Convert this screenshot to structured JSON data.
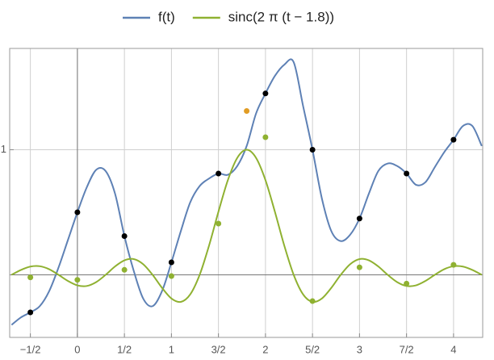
{
  "chart_data": {
    "type": "line",
    "x": [
      -0.7,
      -0.6,
      -0.5,
      -0.4,
      -0.3,
      -0.2,
      -0.1,
      0,
      0.1,
      0.2,
      0.3,
      0.4,
      0.5,
      0.6,
      0.7,
      0.8,
      0.9,
      1,
      1.1,
      1.2,
      1.3,
      1.4,
      1.5,
      1.6,
      1.7,
      1.8,
      1.9,
      2,
      2.1,
      2.2,
      2.3,
      2.4,
      2.5,
      2.6,
      2.7,
      2.8,
      2.9,
      3,
      3.1,
      3.2,
      3.3,
      3.4,
      3.5,
      3.6,
      3.7,
      3.8,
      3.9,
      4,
      4.1,
      4.2,
      4.3
    ],
    "series": [
      {
        "name": "f(t)",
        "color": "#5e81b5",
        "values": [
          -0.4,
          -0.34,
          -0.3,
          -0.25,
          -0.13,
          0.06,
          0.28,
          0.5,
          0.7,
          0.84,
          0.83,
          0.65,
          0.31,
          0.03,
          -0.19,
          -0.25,
          -0.13,
          0.1,
          0.35,
          0.58,
          0.71,
          0.77,
          0.81,
          0.8,
          0.87,
          1.03,
          1.29,
          1.45,
          1.59,
          1.68,
          1.7,
          1.35,
          1.0,
          0.61,
          0.35,
          0.27,
          0.32,
          0.45,
          0.65,
          0.83,
          0.89,
          0.87,
          0.81,
          0.72,
          0.74,
          0.86,
          0.98,
          1.08,
          1.19,
          1.19,
          1.03
        ]
      },
      {
        "name": "sinc(2 π (t − 1.8))",
        "color": "#8fb131",
        "values": [
          0,
          0.039,
          0.066,
          0.069,
          0.045,
          0,
          -0.049,
          -0.084,
          -0.089,
          -0.058,
          0,
          0.067,
          0.116,
          0.126,
          0.085,
          0,
          -0.104,
          -0.189,
          -0.216,
          -0.156,
          0,
          0.234,
          0.505,
          0.757,
          0.935,
          1,
          0.935,
          0.757,
          0.505,
          0.234,
          0,
          -0.156,
          -0.216,
          -0.189,
          -0.104,
          0,
          0.085,
          0.126,
          0.116,
          0.067,
          0,
          -0.058,
          -0.089,
          -0.084,
          -0.049,
          0,
          0.045,
          0.069,
          0.066,
          0.039,
          0
        ]
      }
    ],
    "samples": {
      "x": [
        -0.5,
        0,
        0.5,
        1,
        1.5,
        2,
        2.5,
        3,
        3.5,
        4
      ],
      "f_values": [
        -0.3,
        0.5,
        0.31,
        0.1,
        0.81,
        1.45,
        1.0,
        0.45,
        0.81,
        1.08
      ],
      "f_color": "#000000",
      "sinc_values": [
        -0.02,
        -0.04,
        0.04,
        -0.01,
        0.41,
        1.1,
        -0.21,
        0.06,
        -0.07,
        0.08
      ],
      "sinc_color": "#8fb131"
    },
    "highlight": {
      "x": 1.8,
      "y": 1.31,
      "color": "#e19c24"
    },
    "xlim": [
      -0.72,
      4.31
    ],
    "ylim": [
      -0.5,
      1.81
    ],
    "xticks": [
      {
        "value": -0.5,
        "label": "−1/2"
      },
      0,
      {
        "value": 0.5,
        "label": "1/2"
      },
      1,
      {
        "value": 1.5,
        "label": "3/2"
      },
      2,
      {
        "value": 2.5,
        "label": "5/2"
      },
      3,
      {
        "value": 3.5,
        "label": "7/2"
      },
      4
    ],
    "yticks": [
      1
    ],
    "grid": true
  }
}
